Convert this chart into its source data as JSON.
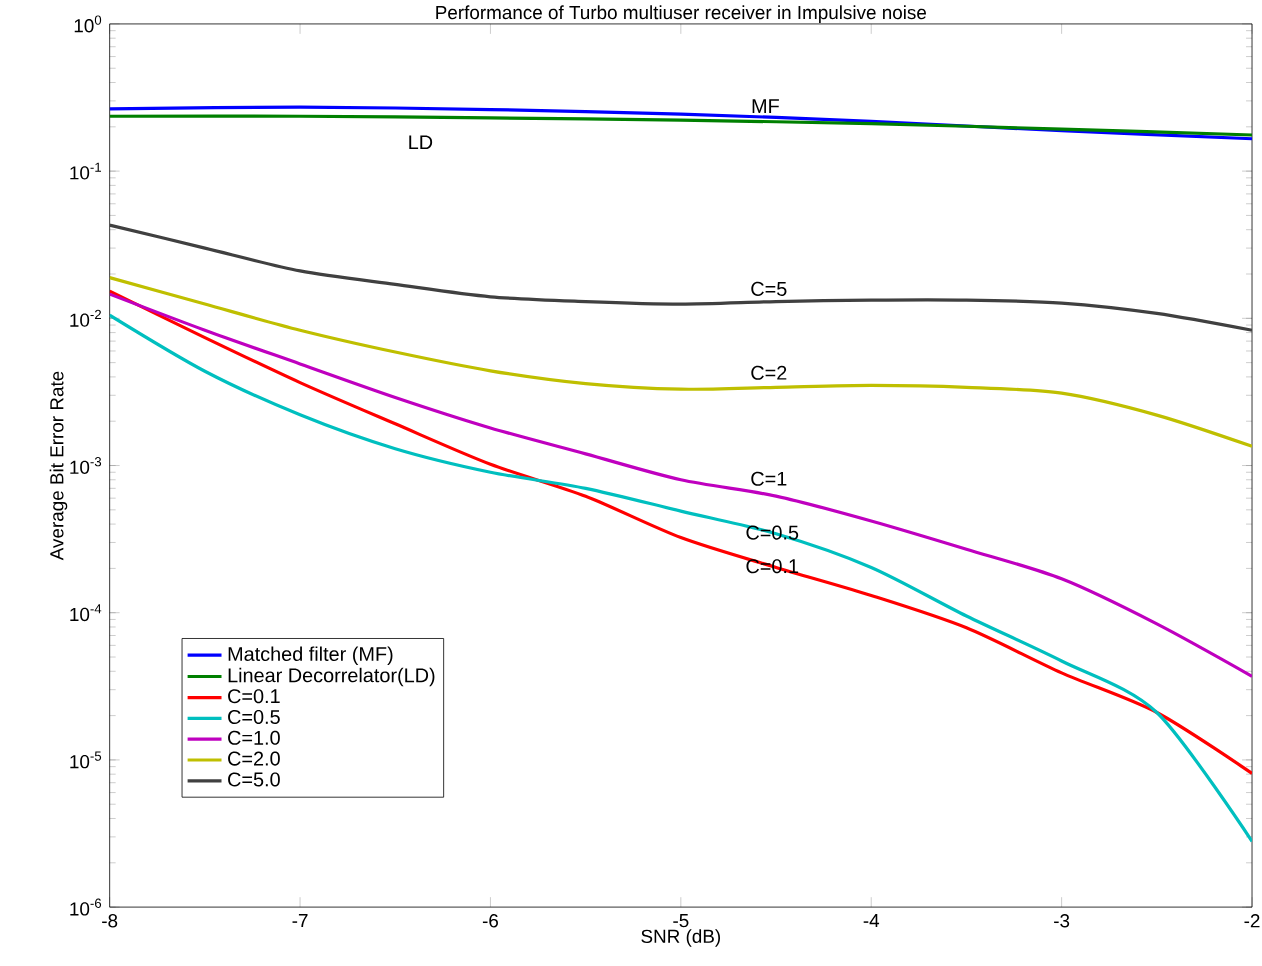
{
  "chart_data": {
    "type": "line",
    "title": "Performance of Turbo multiuser receiver in Impulsive noise",
    "xlabel": "SNR (dB)",
    "ylabel": "Average Bit Error Rate",
    "log": "y",
    "legend": "bottom left",
    "xlim": [
      -8,
      -2
    ],
    "xticks": [
      -8,
      -7,
      -6,
      -5,
      -4,
      -3,
      -2
    ],
    "ylim": [
      1e-06,
      1
    ],
    "yticks": [
      {
        "value": 1e-06,
        "label": "10$^{-6}$"
      },
      {
        "value": 1e-05,
        "label": "10$^{-5}$"
      },
      {
        "value": 0.0001,
        "label": "10$^{-4}$"
      },
      {
        "value": 0.001,
        "label": "10$^{-3}$"
      },
      {
        "value": 0.01,
        "label": "10$^{-2}$"
      },
      {
        "value": 0.1,
        "label": "10$^{-1}$"
      },
      {
        "value": 1,
        "label": "10$^{0}$"
      }
    ],
    "series": [
      {
        "name": "Matched filter (MF)",
        "color": "#0000ff",
        "x": [
          -8,
          -7,
          -6,
          -5,
          -4,
          -3,
          -2
        ],
        "values": [
          0.265,
          0.272,
          0.262,
          0.244,
          0.218,
          0.188,
          0.166
        ]
      },
      {
        "name": "Linear Decorrelator(LD)",
        "color": "#008000",
        "x": [
          -8,
          -7,
          -6,
          -5,
          -4,
          -3,
          -2
        ],
        "values": [
          0.236,
          0.236,
          0.23,
          0.222,
          0.21,
          0.193,
          0.176
        ]
      },
      {
        "name": "C=0.1",
        "color": "#ff0000",
        "x": [
          -8,
          -7.5,
          -7,
          -6.5,
          -6,
          -5.5,
          -5,
          -4.5,
          -4,
          -3.5,
          -3,
          -2.5,
          -2
        ],
        "values": [
          0.0153,
          0.0074,
          0.00366,
          0.00192,
          0.00102,
          0.000618,
          0.000324,
          0.000203,
          0.000131,
          7.9e-05,
          3.9e-05,
          2.1e-05,
          8.1e-06
        ]
      },
      {
        "name": "C=0.5",
        "color": "#00bfbf",
        "x": [
          -8,
          -7.5,
          -7,
          -6.5,
          -6,
          -5.5,
          -5,
          -4.5,
          -4,
          -3.5,
          -3,
          -2.5,
          -2
        ],
        "values": [
          0.0105,
          0.00437,
          0.00221,
          0.0013,
          0.0009,
          0.0007,
          0.00049,
          0.000344,
          0.000203,
          9.5e-05,
          4.7e-05,
          2.1e-05,
          2.8e-06
        ]
      },
      {
        "name": "C=1.0",
        "color": "#bf00bf",
        "x": [
          -8,
          -7.5,
          -7,
          -6.5,
          -6,
          -5.5,
          -5,
          -4.5,
          -4,
          -3.5,
          -3,
          -2.5,
          -2
        ],
        "values": [
          0.0146,
          0.0083,
          0.0049,
          0.0029,
          0.0018,
          0.0012,
          0.0008,
          0.00062,
          0.00042,
          0.00027,
          0.00017,
          8.4e-05,
          3.7e-05
        ]
      },
      {
        "name": "C=2.0",
        "color": "#bfbf00",
        "x": [
          -8,
          -7.5,
          -7,
          -6.5,
          -6,
          -5.5,
          -5,
          -4.5,
          -4,
          -3.5,
          -3,
          -2.5,
          -2
        ],
        "values": [
          0.0189,
          0.0125,
          0.0083,
          0.0059,
          0.0044,
          0.0036,
          0.0033,
          0.0034,
          0.0035,
          0.0034,
          0.0031,
          0.0022,
          0.00135
        ]
      },
      {
        "name": "C=5.0",
        "color": "#404040",
        "x": [
          -8,
          -7.5,
          -7,
          -6.5,
          -6,
          -5.5,
          -5,
          -4.5,
          -4,
          -3.5,
          -3,
          -2.5,
          -2
        ],
        "values": [
          0.043,
          0.03,
          0.021,
          0.017,
          0.014,
          0.013,
          0.0125,
          0.013,
          0.0133,
          0.0133,
          0.0127,
          0.0108,
          0.0083
        ]
      }
    ],
    "annotations": [
      "MF",
      "LD",
      "C=5",
      "C=2",
      "C=1",
      "C=0.5",
      "C=0.1"
    ]
  }
}
